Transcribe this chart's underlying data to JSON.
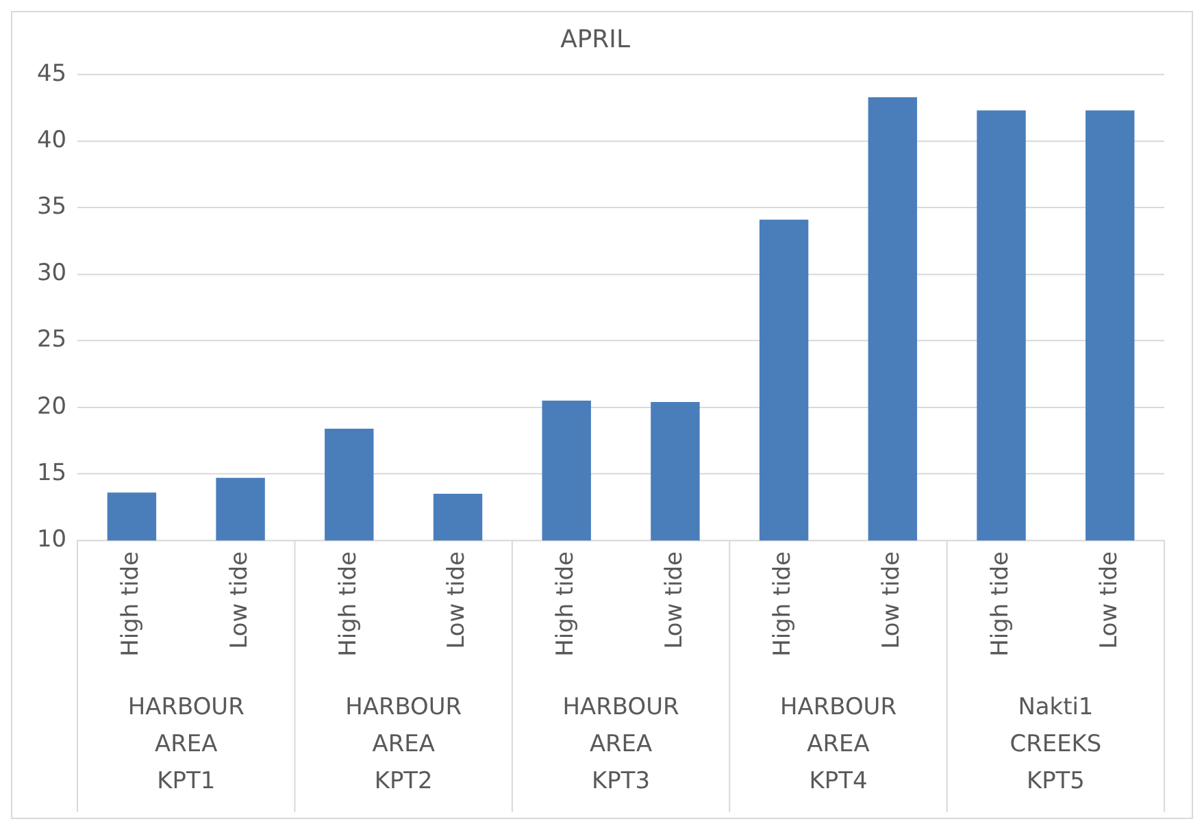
{
  "chart_data": {
    "type": "bar",
    "title": "APRIL",
    "categories": [
      "High tide",
      "Low tide",
      "High tide",
      "Low tide",
      "High tide",
      "Low tide",
      "High tide",
      "Low tide",
      "High tide",
      "Low tide"
    ],
    "values": [
      13.6,
      14.7,
      18.4,
      13.5,
      20.5,
      20.4,
      34.1,
      43.3,
      42.3,
      42.3
    ],
    "color": "#4a7ebb",
    "ylim": [
      10,
      45
    ],
    "yticks": [
      10,
      15,
      20,
      25,
      30,
      35,
      40,
      45
    ],
    "grid": "y",
    "legend": false,
    "annotations": [
      "HARBOUR AREA KPT1",
      "HARBOUR AREA KPT2",
      "HARBOUR AREA KPT3",
      "HARBOUR AREA KPT4",
      "Nakti1 CREEKS KPT5"
    ]
  }
}
